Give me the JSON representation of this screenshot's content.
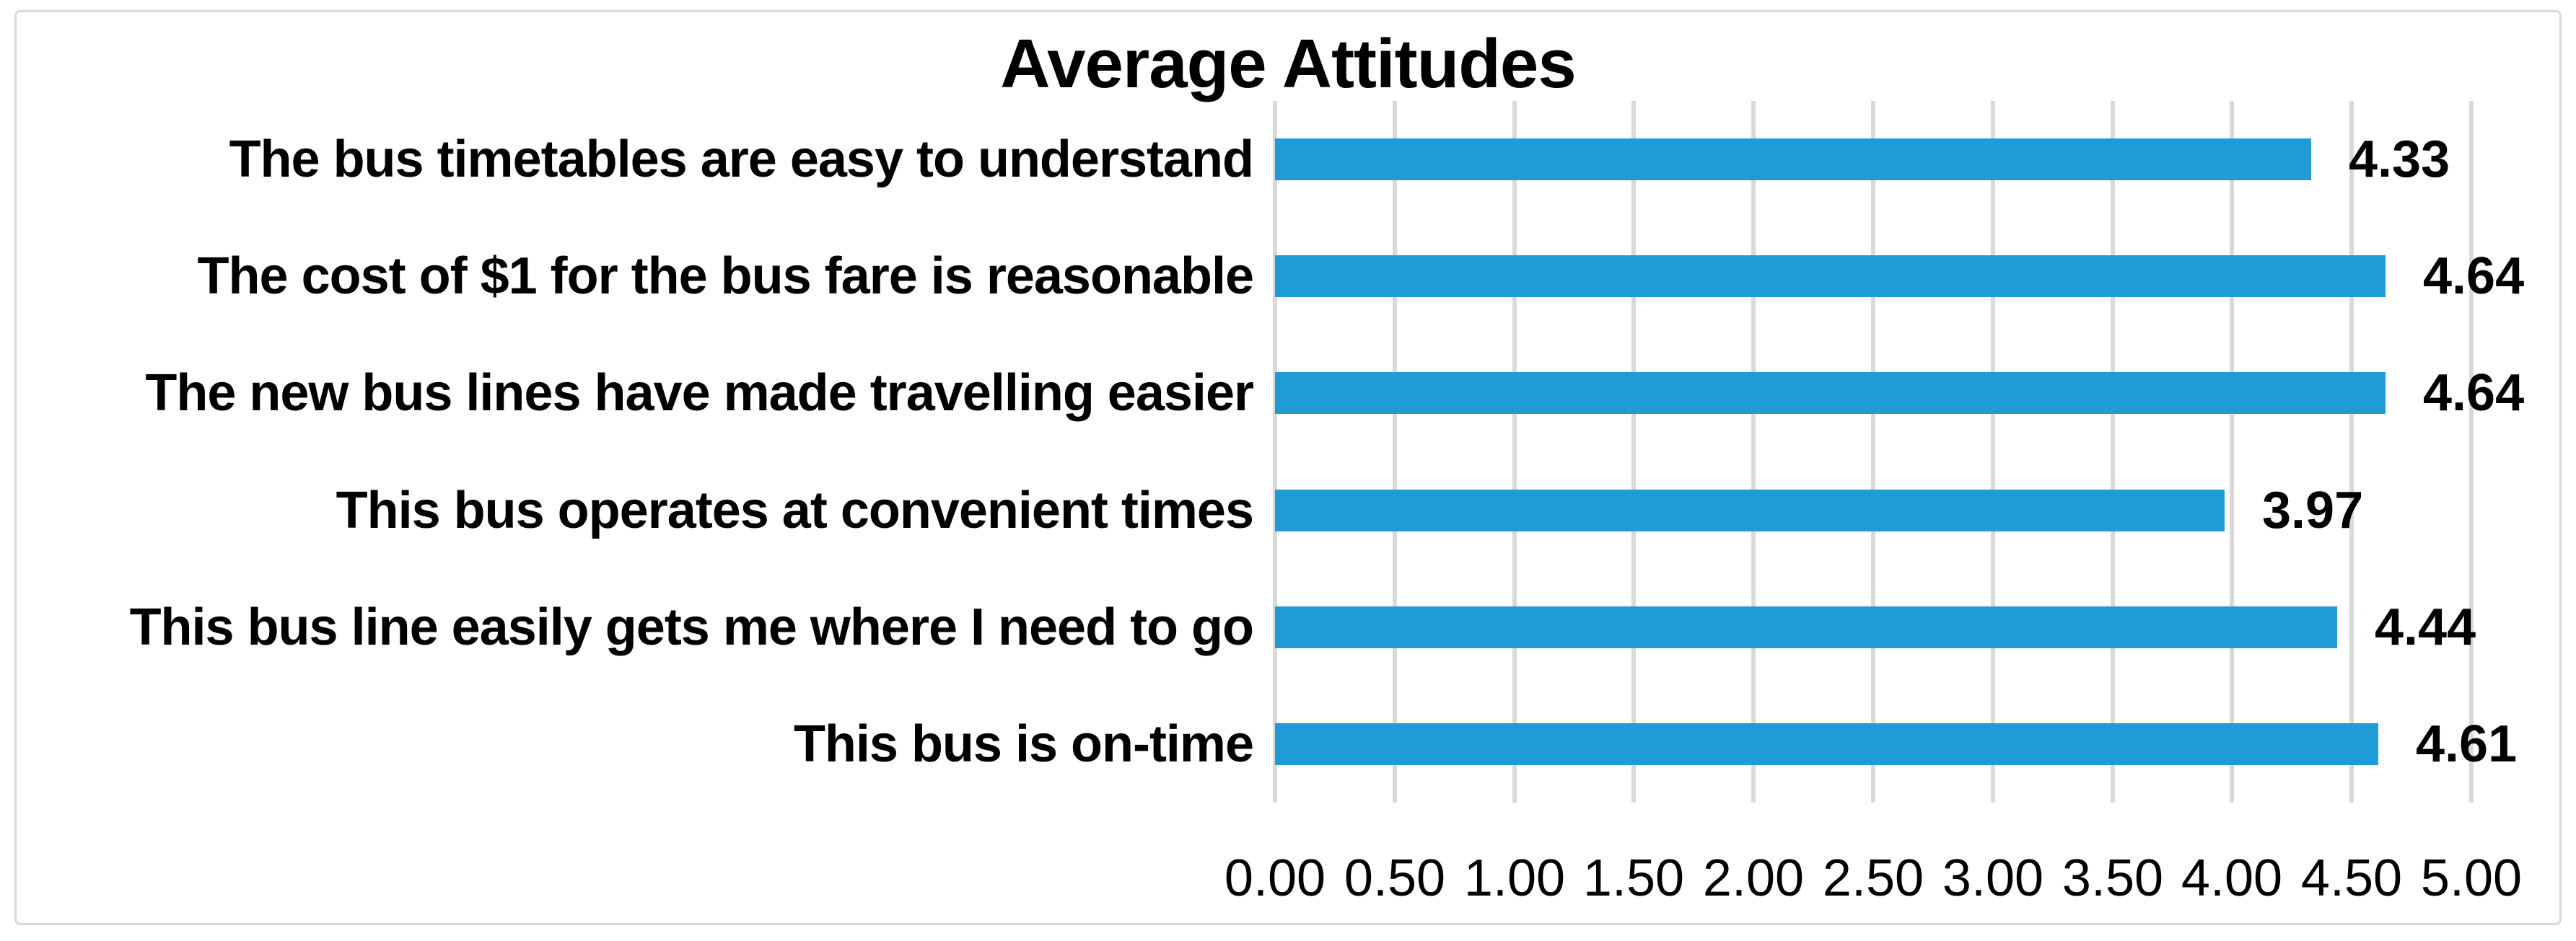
{
  "chart_data": {
    "type": "bar",
    "orientation": "horizontal",
    "title": "Average Attitudes",
    "categories": [
      "The bus timetables are easy to understand",
      "The cost of $1 for the bus fare is reasonable",
      "The new bus lines have made travelling easier",
      "This bus operates at convenient times",
      "This bus line easily gets me where I need to go",
      "This bus is on-time"
    ],
    "values": [
      4.33,
      4.64,
      4.64,
      3.97,
      4.44,
      4.61
    ],
    "value_labels": [
      "4.33",
      "4.64",
      "4.64",
      "3.97",
      "4.44",
      "4.61"
    ],
    "x_ticks": [
      "0.00",
      "0.50",
      "1.00",
      "1.50",
      "2.00",
      "2.50",
      "3.00",
      "3.50",
      "4.00",
      "4.50",
      "5.00"
    ],
    "x_tick_values": [
      0.0,
      0.5,
      1.0,
      1.5,
      2.0,
      2.5,
      3.0,
      3.5,
      4.0,
      4.5,
      5.0
    ],
    "xlim": [
      0,
      5
    ],
    "xlabel": "",
    "ylabel": "",
    "grid": "vertical",
    "legend": "none",
    "data_labels": "outside-end",
    "colors": {
      "bar": "#1f9cd8",
      "gridline": "#d9d9d9",
      "frame_border": "#d9d9d9",
      "text": "#000000",
      "background": "#ffffff"
    }
  }
}
